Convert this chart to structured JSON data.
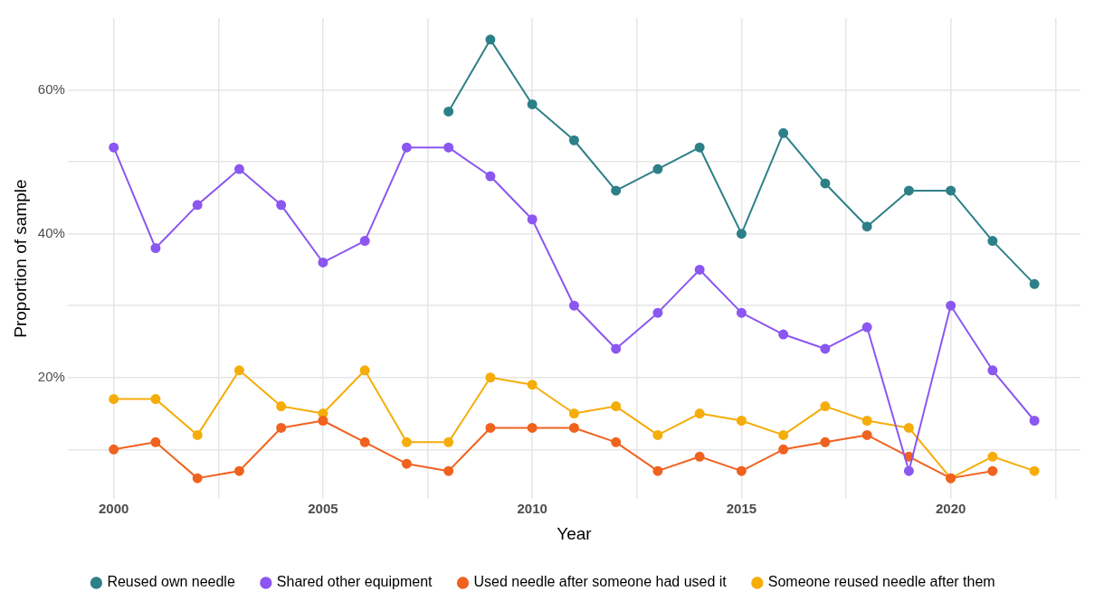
{
  "chart_data": {
    "type": "line",
    "xlabel": "Year",
    "ylabel": "Proportion of sample",
    "x": [
      2000,
      2001,
      2002,
      2003,
      2004,
      2005,
      2006,
      2007,
      2008,
      2009,
      2010,
      2011,
      2012,
      2013,
      2014,
      2015,
      2016,
      2017,
      2018,
      2019,
      2020,
      2021,
      2022
    ],
    "series": [
      {
        "name": "Reused own needle",
        "color": "#2e8088",
        "values": [
          null,
          null,
          null,
          null,
          null,
          null,
          null,
          null,
          57,
          67,
          58,
          53,
          46,
          49,
          52,
          40,
          54,
          47,
          41,
          46,
          46,
          39,
          33
        ]
      },
      {
        "name": "Shared other equipment",
        "color": "#8b57f0",
        "values": [
          52,
          38,
          44,
          49,
          44,
          36,
          39,
          52,
          52,
          48,
          42,
          30,
          24,
          29,
          35,
          29,
          26,
          24,
          27,
          7,
          30,
          21,
          14
        ]
      },
      {
        "name": "Used needle after someone had used it",
        "color": "#f0621f",
        "values": [
          10,
          11,
          6,
          7,
          13,
          14,
          11,
          8,
          7,
          13,
          13,
          13,
          11,
          7,
          9,
          7,
          10,
          11,
          12,
          9,
          6,
          7,
          null
        ]
      },
      {
        "name": "Someone reused needle after them",
        "color": "#f5ad0a",
        "values": [
          17,
          17,
          12,
          21,
          16,
          15,
          21,
          11,
          11,
          20,
          19,
          15,
          16,
          12,
          15,
          14,
          12,
          16,
          14,
          13,
          6,
          9,
          7
        ]
      }
    ],
    "xlim": [
      1998.9,
      2023.1
    ],
    "xticks": [
      {
        "value": 2000,
        "label": "2000"
      },
      {
        "value": 2002.5,
        "label": null
      },
      {
        "value": 2005,
        "label": "2005"
      },
      {
        "value": 2007.5,
        "label": null
      },
      {
        "value": 2010,
        "label": "2010"
      },
      {
        "value": 2012.5,
        "label": null
      },
      {
        "value": 2015,
        "label": "2015"
      },
      {
        "value": 2017.5,
        "label": null
      },
      {
        "value": 2020,
        "label": "2020"
      },
      {
        "value": 2022.5,
        "label": null
      }
    ],
    "ylim": [
      3.1,
      70
    ],
    "yticks": [
      {
        "value": 10,
        "label": null
      },
      {
        "value": 20,
        "label": "20%"
      },
      {
        "value": 30,
        "label": null
      },
      {
        "value": 40,
        "label": "40%"
      },
      {
        "value": 50,
        "label": null
      },
      {
        "value": 60,
        "label": "60%"
      }
    ],
    "grid": true,
    "legend": "bottom",
    "marker": "circle",
    "line_style": "solid"
  }
}
